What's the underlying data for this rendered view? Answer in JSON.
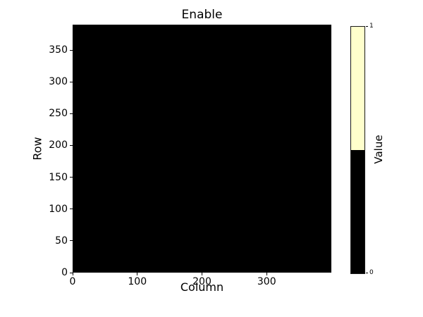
{
  "chart_data": {
    "type": "heatmap",
    "title": "Enable",
    "xlabel": "Column",
    "ylabel": "Row",
    "x_ticks": [
      0,
      100,
      200,
      300
    ],
    "y_ticks": [
      0,
      50,
      100,
      150,
      200,
      250,
      300,
      350
    ],
    "xlim": [
      0,
      400
    ],
    "ylim": [
      0,
      390
    ],
    "grid": false,
    "legend": false,
    "values_uniform": 0,
    "palette": {
      "0": "#000000",
      "1": "#ffffcc"
    },
    "colorbar": {
      "label": "Value",
      "position": "right",
      "ticks": [
        {
          "value": 1,
          "label": "1"
        },
        {
          "value": 0,
          "label": "0"
        }
      ],
      "segments": [
        {
          "from": 0.5,
          "to": 1.0,
          "color": "#ffffcc"
        },
        {
          "from": 0.0,
          "to": 0.5,
          "color": "#000000"
        }
      ]
    }
  }
}
